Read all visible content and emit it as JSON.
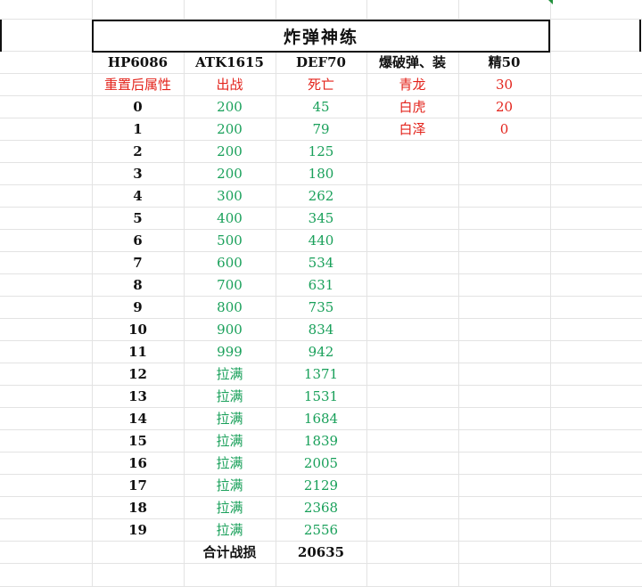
{
  "title": "炸弹神练",
  "stats_row": [
    "HP6086",
    "ATK1615",
    "DEF70",
    "爆破弹、装",
    "精50"
  ],
  "header_row": [
    "重置后属性",
    "出战",
    "死亡",
    "青龙",
    "30"
  ],
  "side": [
    {
      "name": "白虎",
      "value": "20"
    },
    {
      "name": "白泽",
      "value": "0"
    }
  ],
  "rows": [
    {
      "level": "0",
      "deploy": "200",
      "death": "45"
    },
    {
      "level": "1",
      "deploy": "200",
      "death": "79"
    },
    {
      "level": "2",
      "deploy": "200",
      "death": "125"
    },
    {
      "level": "3",
      "deploy": "200",
      "death": "180"
    },
    {
      "level": "4",
      "deploy": "300",
      "death": "262"
    },
    {
      "level": "5",
      "deploy": "400",
      "death": "345"
    },
    {
      "level": "6",
      "deploy": "500",
      "death": "440"
    },
    {
      "level": "7",
      "deploy": "600",
      "death": "534"
    },
    {
      "level": "8",
      "deploy": "700",
      "death": "631"
    },
    {
      "level": "9",
      "deploy": "800",
      "death": "735"
    },
    {
      "level": "10",
      "deploy": "900",
      "death": "834"
    },
    {
      "level": "11",
      "deploy": "999",
      "death": "942"
    },
    {
      "level": "12",
      "deploy": "拉满",
      "death": "1371"
    },
    {
      "level": "13",
      "deploy": "拉满",
      "death": "1531"
    },
    {
      "level": "14",
      "deploy": "拉满",
      "death": "1684"
    },
    {
      "level": "15",
      "deploy": "拉满",
      "death": "1839"
    },
    {
      "level": "16",
      "deploy": "拉满",
      "death": "2005"
    },
    {
      "level": "17",
      "deploy": "拉满",
      "death": "2129"
    },
    {
      "level": "18",
      "deploy": "拉满",
      "death": "2368"
    },
    {
      "level": "19",
      "deploy": "拉满",
      "death": "2556"
    }
  ],
  "total": {
    "label": "合计战损",
    "value": "20635"
  },
  "colors": {
    "red": "#e3241c",
    "green": "#19a05a"
  }
}
